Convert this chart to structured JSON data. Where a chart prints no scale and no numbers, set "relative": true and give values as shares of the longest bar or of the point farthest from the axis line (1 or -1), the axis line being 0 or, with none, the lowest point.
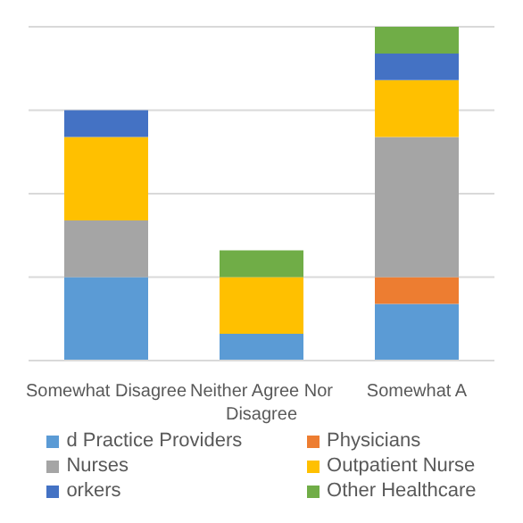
{
  "chart_data": {
    "type": "bar",
    "stacked": true,
    "relative": true,
    "grid": "y",
    "legend": "bottom",
    "categories": [
      "Somewhat Disagree",
      "Neither Agree Nor Disagree",
      "Somewhat A"
    ],
    "series": [
      {
        "name": "d Practice Providers",
        "color": "#5b9bd5",
        "values": [
          0.25,
          0.08,
          0.17
        ]
      },
      {
        "name": "Physicians",
        "color": "#ed7d31",
        "values": [
          0,
          0,
          0.08
        ]
      },
      {
        "name": "Nurses",
        "color": "#a5a5a5",
        "values": [
          0.17,
          0,
          0.42
        ]
      },
      {
        "name": "Outpatient Nurse",
        "color": "#ffc000",
        "values": [
          0.25,
          0.17,
          0.17
        ]
      },
      {
        "name": "orkers",
        "color": "#4472c4",
        "values": [
          0.08,
          0,
          0.08
        ]
      },
      {
        "name": "Other Healthcare",
        "color": "#70ad47",
        "values": [
          0,
          0.08,
          0.08
        ]
      }
    ]
  }
}
